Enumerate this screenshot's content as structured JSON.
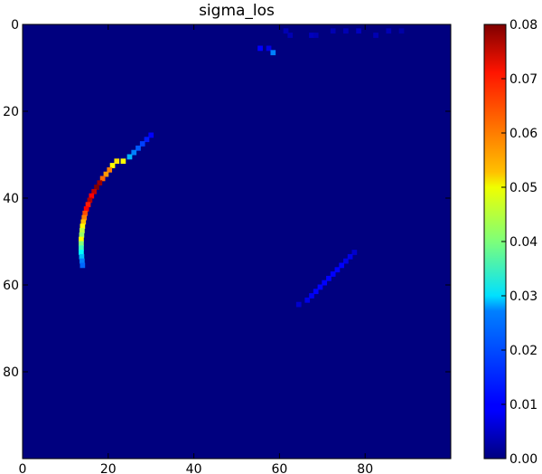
{
  "chart_data": {
    "type": "heatmap",
    "title": "sigma_los",
    "xlabel": "",
    "ylabel": "",
    "colormap": "jet",
    "x_range": [
      0,
      99
    ],
    "y_range": [
      0,
      99
    ],
    "y_inverted": true,
    "x_ticks": [
      "0",
      "20",
      "40",
      "60",
      "80"
    ],
    "y_ticks": [
      "0",
      "20",
      "40",
      "60",
      "80"
    ],
    "colorbar": {
      "range": [
        0.0,
        0.08
      ],
      "ticks": [
        "0.00",
        "0.01",
        "0.02",
        "0.03",
        "0.04",
        "0.05",
        "0.06",
        "0.07",
        "0.08"
      ]
    },
    "background_value": 0.0,
    "features": [
      {
        "name": "bright arc",
        "points": [
          [
            29.5,
            25,
            0.01
          ],
          [
            28.5,
            26,
            0.012
          ],
          [
            27.5,
            27,
            0.015
          ],
          [
            26.5,
            28,
            0.017
          ],
          [
            25.5,
            29,
            0.02
          ],
          [
            24.5,
            30,
            0.024
          ],
          [
            23.0,
            31,
            0.05
          ],
          [
            21.5,
            31,
            0.052
          ],
          [
            20.5,
            32,
            0.05
          ],
          [
            19.8,
            33,
            0.06
          ],
          [
            19.0,
            34,
            0.058
          ],
          [
            18.2,
            35,
            0.062
          ],
          [
            17.5,
            36,
            0.078
          ],
          [
            16.8,
            37,
            0.08
          ],
          [
            16.2,
            38,
            0.075
          ],
          [
            15.6,
            39,
            0.07
          ],
          [
            15.2,
            40,
            0.076
          ],
          [
            14.8,
            41,
            0.068
          ],
          [
            14.4,
            42,
            0.07
          ],
          [
            14.1,
            43,
            0.064
          ],
          [
            13.9,
            44,
            0.06
          ],
          [
            13.7,
            45,
            0.055
          ],
          [
            13.5,
            46,
            0.05
          ],
          [
            13.4,
            47,
            0.045
          ],
          [
            13.3,
            48,
            0.042
          ],
          [
            13.2,
            49,
            0.05
          ],
          [
            13.2,
            50,
            0.04
          ],
          [
            13.2,
            51,
            0.035
          ],
          [
            13.2,
            52,
            0.03
          ],
          [
            13.3,
            53,
            0.025
          ],
          [
            13.4,
            54,
            0.02
          ],
          [
            13.5,
            55,
            0.018
          ]
        ]
      },
      {
        "name": "diagonal streak",
        "points": [
          [
            77,
            52,
            0.006
          ],
          [
            76,
            53,
            0.008
          ],
          [
            75,
            54,
            0.008
          ],
          [
            74,
            55,
            0.01
          ],
          [
            73,
            56,
            0.01
          ],
          [
            72,
            57,
            0.01
          ],
          [
            71,
            58,
            0.01
          ],
          [
            70,
            59,
            0.01
          ],
          [
            69,
            60,
            0.01
          ],
          [
            68,
            61,
            0.01
          ],
          [
            67,
            62,
            0.009
          ],
          [
            66,
            63,
            0.008
          ],
          [
            64,
            64,
            0.006
          ]
        ]
      },
      {
        "name": "top specks",
        "points": [
          [
            55,
            5,
            0.01
          ],
          [
            57,
            5,
            0.008
          ],
          [
            58,
            6,
            0.02
          ],
          [
            61,
            1,
            0.004
          ],
          [
            62,
            2,
            0.004
          ],
          [
            67,
            2,
            0.005
          ],
          [
            68,
            2,
            0.004
          ],
          [
            72,
            1,
            0.004
          ],
          [
            75,
            1,
            0.004
          ],
          [
            78,
            1,
            0.005
          ],
          [
            82,
            2,
            0.004
          ],
          [
            85,
            1,
            0.004
          ],
          [
            88,
            1,
            0.003
          ]
        ]
      }
    ]
  }
}
